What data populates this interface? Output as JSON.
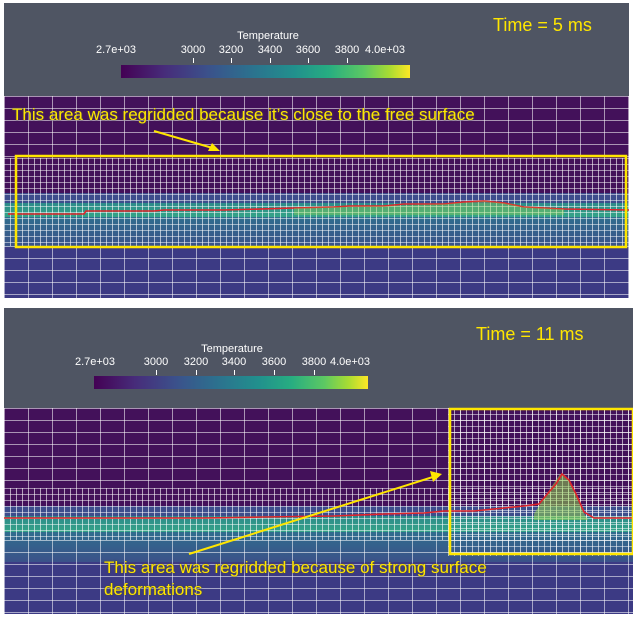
{
  "panels": [
    {
      "time_label": "Time = 5 ms",
      "colorbar": {
        "title": "Temperature",
        "ticks": [
          "2.7e+03",
          "3000",
          "3200",
          "3400",
          "3600",
          "3800",
          "4.0e+03"
        ]
      },
      "annotation": "This area was regridded because it’s close to the free surface"
    },
    {
      "time_label": "Time = 11 ms",
      "colorbar": {
        "title": "Temperature",
        "ticks": [
          "2.7e+03",
          "3000",
          "3200",
          "3400",
          "3600",
          "3800",
          "4.0e+03"
        ]
      },
      "annotation_line1": "This area was regridded because of strong surface",
      "annotation_line2": "deformations"
    }
  ],
  "colors": {
    "highlight": "#ffe600",
    "interface_line": "#e0242a",
    "background": "#4f5563"
  },
  "colormap": "viridis"
}
